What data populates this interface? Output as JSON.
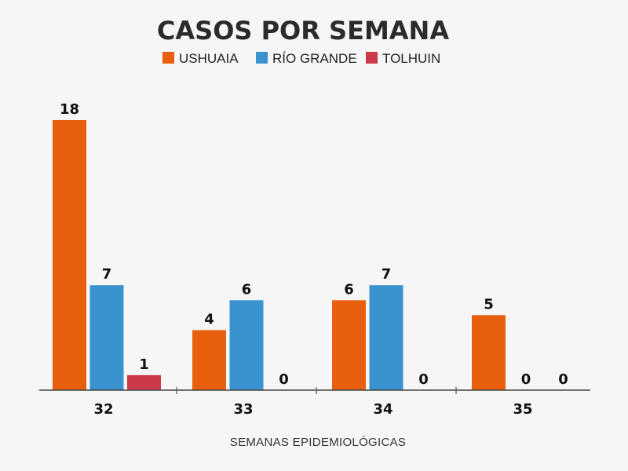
{
  "chart_data": {
    "type": "bar",
    "title": "CASOS POR SEMANA",
    "xlabel": "SEMANAS EPIDEMIOLÓGICAS",
    "ylabel": "",
    "categories": [
      "32",
      "33",
      "34",
      "35"
    ],
    "series": [
      {
        "name": "USHUAIA",
        "color": "#e8600e",
        "values": [
          18,
          4,
          6,
          5
        ]
      },
      {
        "name": "RÍO GRANDE",
        "color": "#3a92cf",
        "values": [
          7,
          6,
          7,
          0
        ]
      },
      {
        "name": "TOLHUIN",
        "color": "#cc3a4a",
        "values": [
          1,
          0,
          0,
          0
        ]
      }
    ],
    "ylim": [
      0,
      18
    ],
    "grid": false,
    "legend": "top-center",
    "data_labels": true
  }
}
